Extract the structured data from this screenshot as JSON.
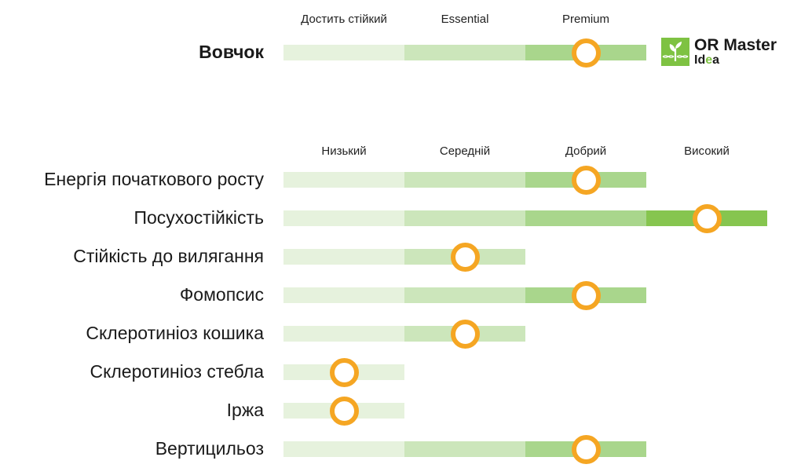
{
  "top": {
    "headers": [
      "Достить стійкий",
      "Essential",
      "Premium"
    ],
    "label": "Вовчок",
    "level": 3
  },
  "logo": {
    "line1": "OR Master",
    "line2_a": "I",
    "line2_b": "d",
    "line2_c": "e",
    "line2_d": "a"
  },
  "scale": {
    "headers": [
      "Низький",
      "Середній",
      "Добрий",
      "Високий"
    ]
  },
  "rows": [
    {
      "label": "Енергія початкового росту",
      "level": 3
    },
    {
      "label": "Посухостійкість",
      "level": 4
    },
    {
      "label": "Стійкість до вилягання",
      "level": 2
    },
    {
      "label": "Фомопсис",
      "level": 3
    },
    {
      "label": "Склеротиніоз кошика",
      "level": 2
    },
    {
      "label": "Склеротиніоз стебла",
      "level": 1
    },
    {
      "label": "Іржа",
      "level": 1
    },
    {
      "label": "Вертицильоз",
      "level": 3
    }
  ],
  "colors": {
    "level1": "#e6f2dd",
    "level2": "#cce6bb",
    "level3": "#a9d68c",
    "level4": "#86c54f",
    "marker": "#f5a623",
    "logo": "#7ec242"
  }
}
